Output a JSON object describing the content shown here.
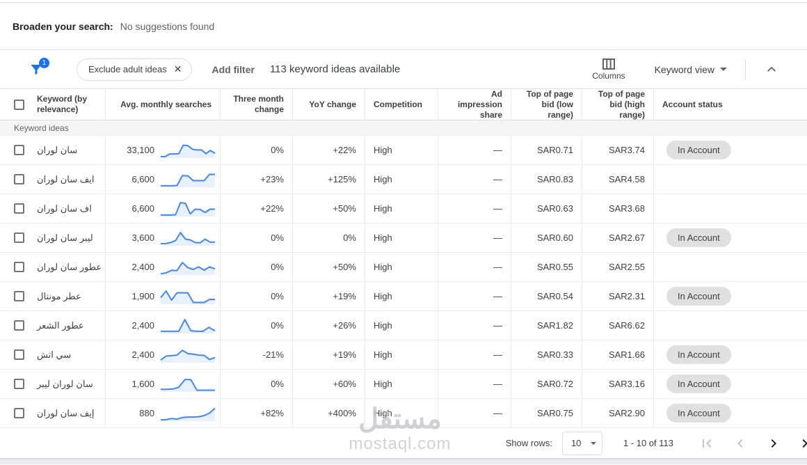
{
  "broaden": {
    "label": "Broaden your search:",
    "value": "No suggestions found"
  },
  "toolbar": {
    "filter_badge_count": "1",
    "chip_label": "Exclude adult ideas",
    "chip_close": "✕",
    "add_filter_label": "Add filter",
    "ideas_count": "113 keyword ideas available",
    "columns_label": "Columns",
    "view_label": "Keyword view"
  },
  "table": {
    "headers": [
      "Keyword (by relevance)",
      "Avg. monthly searches",
      "Three month change",
      "YoY change",
      "Competition",
      "Ad impression share",
      "Top of page bid (low range)",
      "Top of page bid (high range)",
      "Account status"
    ],
    "section_label": "Keyword ideas",
    "rows": [
      {
        "keyword": "سان لوران",
        "avg_monthly_searches": "33,100",
        "three_month_change": "0%",
        "yoy_change": "+22%",
        "competition": "High",
        "ad_impression_share": "—",
        "top_bid_low": "SAR0.71",
        "top_bid_high": "SAR3.74",
        "account_status": "In Account",
        "spark": [
          0.1,
          0.1,
          0.28,
          0.28,
          0.3,
          0.88,
          0.85,
          0.6,
          0.55,
          0.55,
          0.3,
          0.52,
          0.32
        ]
      },
      {
        "keyword": "ايف سان لوران",
        "avg_monthly_searches": "6,600",
        "three_month_change": "+23%",
        "yoy_change": "+125%",
        "competition": "High",
        "ad_impression_share": "—",
        "top_bid_low": "SAR0.83",
        "top_bid_high": "SAR4.58",
        "account_status": "",
        "spark": [
          0.1,
          0.1,
          0.1,
          0.12,
          0.8,
          0.78,
          0.45,
          0.45,
          0.45,
          0.88,
          0.88
        ]
      },
      {
        "keyword": "اف سان لوران",
        "avg_monthly_searches": "6,600",
        "three_month_change": "+22%",
        "yoy_change": "+50%",
        "competition": "High",
        "ad_impression_share": "—",
        "top_bid_low": "SAR0.63",
        "top_bid_high": "SAR3.68",
        "account_status": "",
        "spark": [
          0.1,
          0.1,
          0.1,
          0.12,
          0.95,
          0.9,
          0.18,
          0.5,
          0.48,
          0.28,
          0.5,
          0.5
        ]
      },
      {
        "keyword": "ليبر سان لوران",
        "avg_monthly_searches": "3,600",
        "three_month_change": "0%",
        "yoy_change": "0%",
        "competition": "High",
        "ad_impression_share": "—",
        "top_bid_low": "SAR0.60",
        "top_bid_high": "SAR2.67",
        "account_status": "In Account",
        "spark": [
          0.15,
          0.15,
          0.22,
          0.35,
          0.9,
          0.45,
          0.4,
          0.22,
          0.2,
          0.45,
          0.25,
          0.25
        ]
      },
      {
        "keyword": "عطور سان لوران",
        "avg_monthly_searches": "2,400",
        "three_month_change": "0%",
        "yoy_change": "+50%",
        "competition": "High",
        "ad_impression_share": "—",
        "top_bid_low": "SAR0.55",
        "top_bid_high": "SAR2.55",
        "account_status": "",
        "spark": [
          0.08,
          0.15,
          0.32,
          0.3,
          0.85,
          0.5,
          0.38,
          0.55,
          0.33,
          0.55,
          0.42
        ]
      },
      {
        "keyword": "عطر مونتال",
        "avg_monthly_searches": "1,900",
        "three_month_change": "0%",
        "yoy_change": "+19%",
        "competition": "High",
        "ad_impression_share": "—",
        "top_bid_low": "SAR0.54",
        "top_bid_high": "SAR2.31",
        "account_status": "In Account",
        "spark": [
          0.45,
          0.9,
          0.28,
          0.78,
          0.78,
          0.78,
          0.12,
          0.12,
          0.12,
          0.33,
          0.33
        ]
      },
      {
        "keyword": "عطور الشعر",
        "avg_monthly_searches": "2,400",
        "three_month_change": "0%",
        "yoy_change": "+26%",
        "competition": "High",
        "ad_impression_share": "—",
        "top_bid_low": "SAR1.82",
        "top_bid_high": "SAR6.62",
        "account_status": "",
        "spark": [
          0.15,
          0.15,
          0.15,
          0.15,
          0.95,
          0.18,
          0.15,
          0.15,
          0.42,
          0.18
        ]
      },
      {
        "keyword": "سي اتش",
        "avg_monthly_searches": "2,400",
        "three_month_change": "-21%",
        "yoy_change": "+19%",
        "competition": "High",
        "ad_impression_share": "—",
        "top_bid_low": "SAR0.33",
        "top_bid_high": "SAR1.66",
        "account_status": "In Account",
        "spark": [
          0.18,
          0.45,
          0.48,
          0.52,
          0.85,
          0.62,
          0.58,
          0.52,
          0.5,
          0.22,
          0.35
        ]
      },
      {
        "keyword": "سان لوران ليبر",
        "avg_monthly_searches": "1,600",
        "three_month_change": "0%",
        "yoy_change": "+60%",
        "competition": "High",
        "ad_impression_share": "—",
        "top_bid_low": "SAR0.72",
        "top_bid_high": "SAR3.16",
        "account_status": "In Account",
        "spark": [
          0.18,
          0.18,
          0.2,
          0.32,
          0.85,
          0.85,
          0.12,
          0.12,
          0.12,
          0.12
        ]
      },
      {
        "keyword": "إيف سان لوران",
        "avg_monthly_searches": "880",
        "three_month_change": "+82%",
        "yoy_change": "+400%",
        "competition": "High",
        "ad_impression_share": "—",
        "top_bid_low": "SAR0.75",
        "top_bid_high": "SAR2.90",
        "account_status": "In Account",
        "spark": [
          0.08,
          0.1,
          0.18,
          0.14,
          0.25,
          0.28,
          0.28,
          0.3,
          0.38,
          0.55,
          0.88
        ]
      }
    ]
  },
  "pagination": {
    "show_rows_label": "Show rows:",
    "rows_value": "10",
    "range": "1 - 10 of 113"
  },
  "watermark": {
    "logo": "مستقل",
    "domain": "mostaql.com"
  },
  "colors": {
    "accent_blue": "#1A73E8",
    "spark_line": "#4285F4",
    "spark_fill": "#E8F0FE",
    "badge_bg": "#E0E0E0",
    "icon_gray": "#5F6368",
    "icon_disabled": "#C0C4C8",
    "icon_enabled": "#202124"
  }
}
